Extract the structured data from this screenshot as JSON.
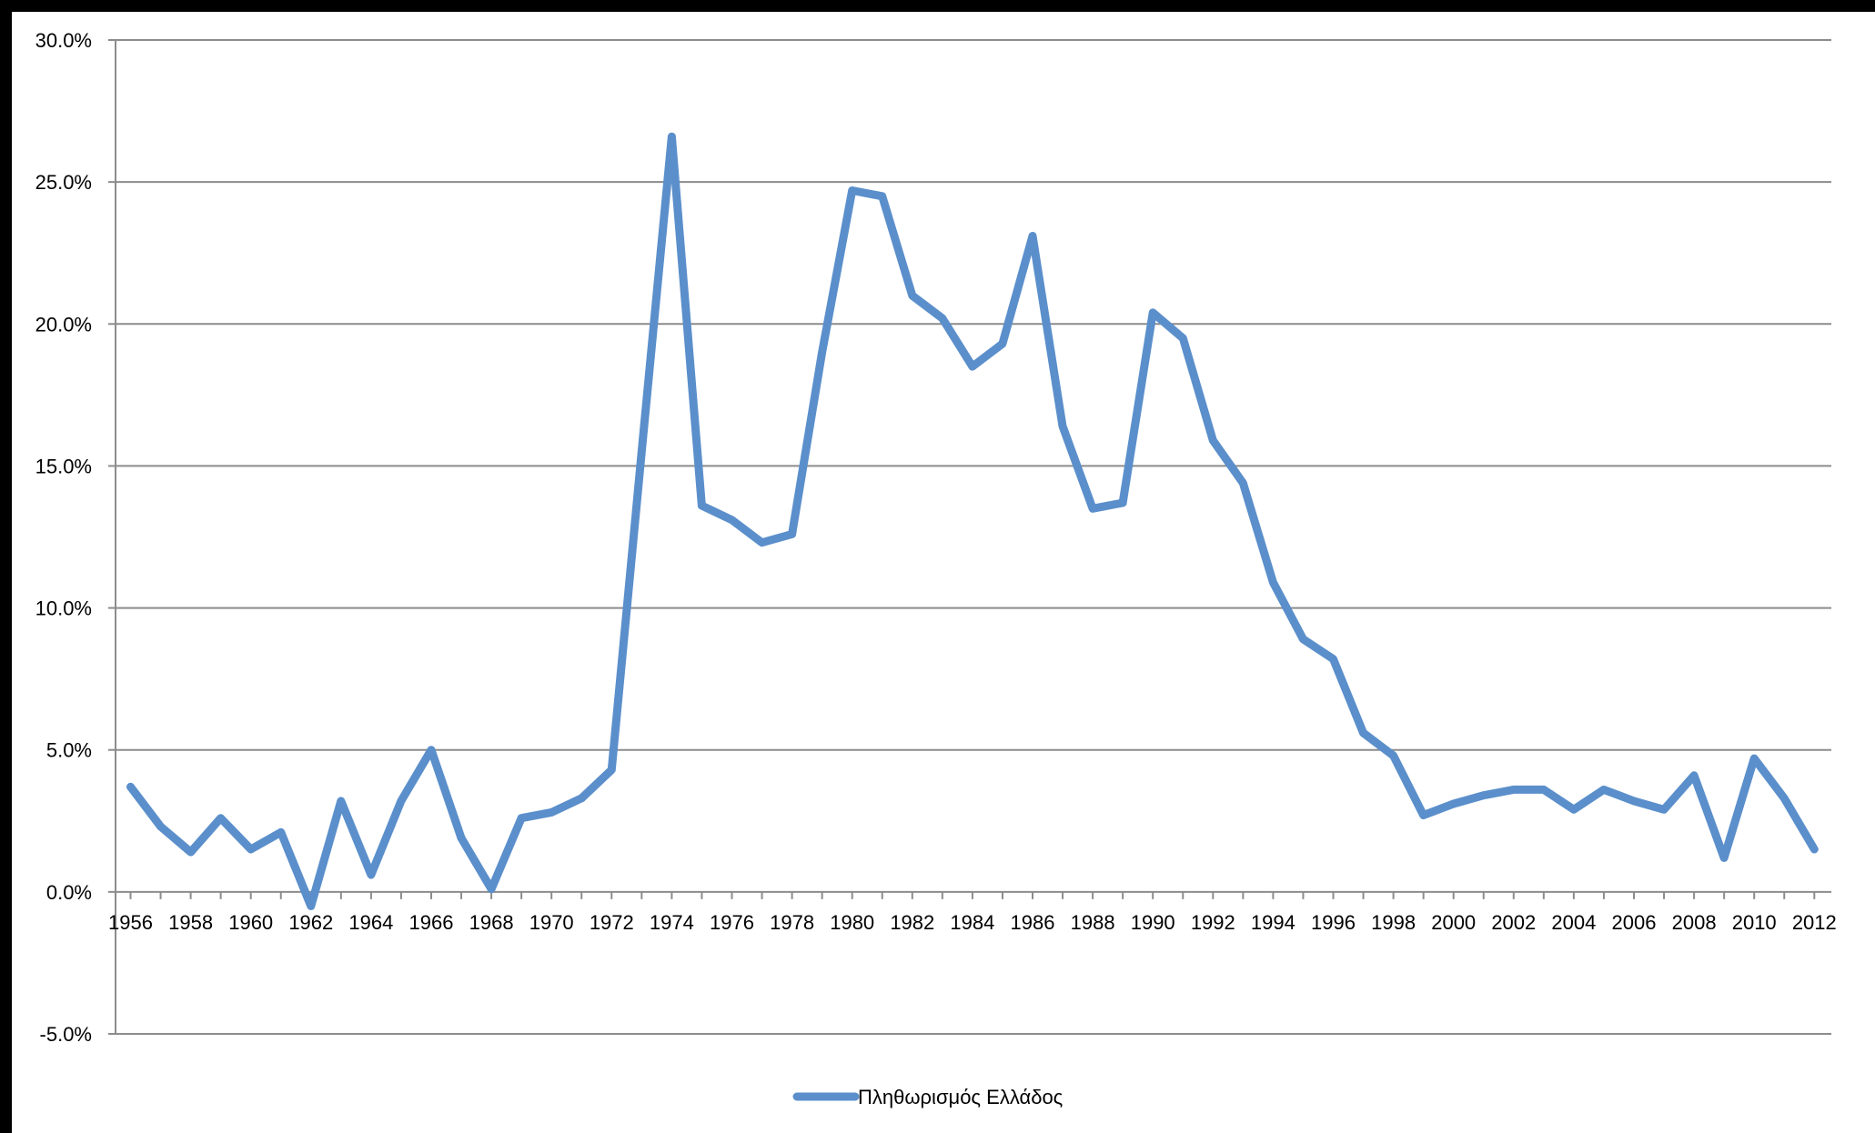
{
  "chart_data": {
    "type": "line",
    "title": "",
    "xlabel": "",
    "ylabel": "",
    "ylim": [
      -5,
      30
    ],
    "y_ticks": [
      -5,
      0,
      5,
      10,
      15,
      20,
      25,
      30
    ],
    "y_tick_labels": [
      "-5.0%",
      "0.0%",
      "5.0%",
      "10.0%",
      "15.0%",
      "20.0%",
      "25.0%",
      "30.0%"
    ],
    "x_tick_labels": [
      "1956",
      "1958",
      "1960",
      "1962",
      "1964",
      "1966",
      "1968",
      "1970",
      "1972",
      "1974",
      "1976",
      "1978",
      "1980",
      "1982",
      "1984",
      "1986",
      "1988",
      "1990",
      "1992",
      "1994",
      "1996",
      "1998",
      "2000",
      "2002",
      "2004",
      "2006",
      "2008",
      "2010",
      "2012"
    ],
    "grid": true,
    "legend_position": "bottom",
    "series": [
      {
        "name": "Πληθωρισμός Ελλάδος",
        "color": "#5b8fcb",
        "x": [
          1956,
          1957,
          1958,
          1959,
          1960,
          1961,
          1962,
          1963,
          1964,
          1965,
          1966,
          1967,
          1968,
          1969,
          1970,
          1971,
          1972,
          1973,
          1974,
          1975,
          1976,
          1977,
          1978,
          1979,
          1980,
          1981,
          1982,
          1983,
          1984,
          1985,
          1986,
          1987,
          1988,
          1989,
          1990,
          1991,
          1992,
          1993,
          1994,
          1995,
          1996,
          1997,
          1998,
          1999,
          2000,
          2001,
          2002,
          2003,
          2004,
          2005,
          2006,
          2007,
          2008,
          2009,
          2010,
          2011,
          2012
        ],
        "values": [
          3.7,
          2.3,
          1.4,
          2.6,
          1.5,
          2.1,
          -0.5,
          3.2,
          0.6,
          3.2,
          5.0,
          1.9,
          0.1,
          2.6,
          2.8,
          3.3,
          4.3,
          15.5,
          26.6,
          13.6,
          13.1,
          12.3,
          12.6,
          19.0,
          24.7,
          24.5,
          21.0,
          20.2,
          18.5,
          19.3,
          23.1,
          16.4,
          13.5,
          13.7,
          20.4,
          19.5,
          15.9,
          14.4,
          10.9,
          8.9,
          8.2,
          5.6,
          4.8,
          2.7,
          3.1,
          3.4,
          3.6,
          3.6,
          2.9,
          3.6,
          3.2,
          2.9,
          4.1,
          1.2,
          4.7,
          3.3,
          1.5
        ]
      }
    ]
  }
}
